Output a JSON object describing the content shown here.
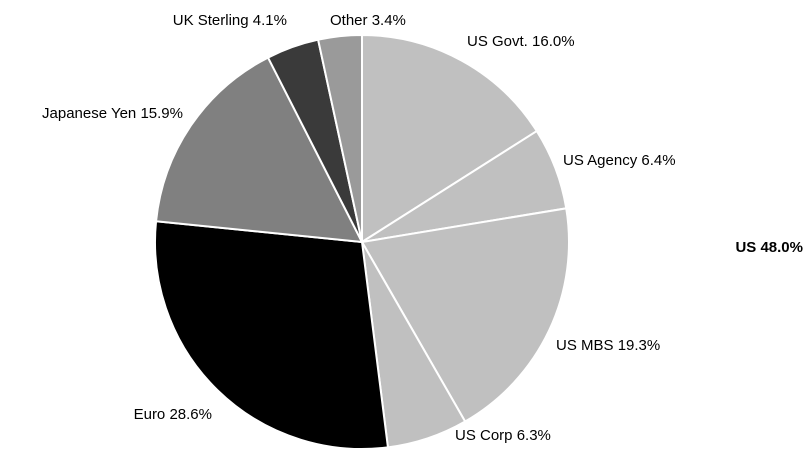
{
  "chart_data": {
    "type": "pie",
    "categories": [
      "US Govt.",
      "US Agency",
      "US MBS",
      "US Corp",
      "Euro",
      "Japanese Yen",
      "UK Sterling",
      "Other"
    ],
    "values": [
      16.0,
      6.4,
      19.3,
      6.3,
      28.6,
      15.9,
      4.1,
      3.4
    ],
    "value_labels": [
      "16.0%",
      "6.4%",
      "19.3%",
      "6.3%",
      "28.6%",
      "15.9%",
      "4.1%",
      "3.4%"
    ],
    "colors": [
      "#c0c0c0",
      "#c0c0c0",
      "#c0c0c0",
      "#c0c0c0",
      "#000000",
      "#808080",
      "#3a3a3a",
      "#9a9a9a"
    ],
    "annotation": "US 48.0%"
  }
}
